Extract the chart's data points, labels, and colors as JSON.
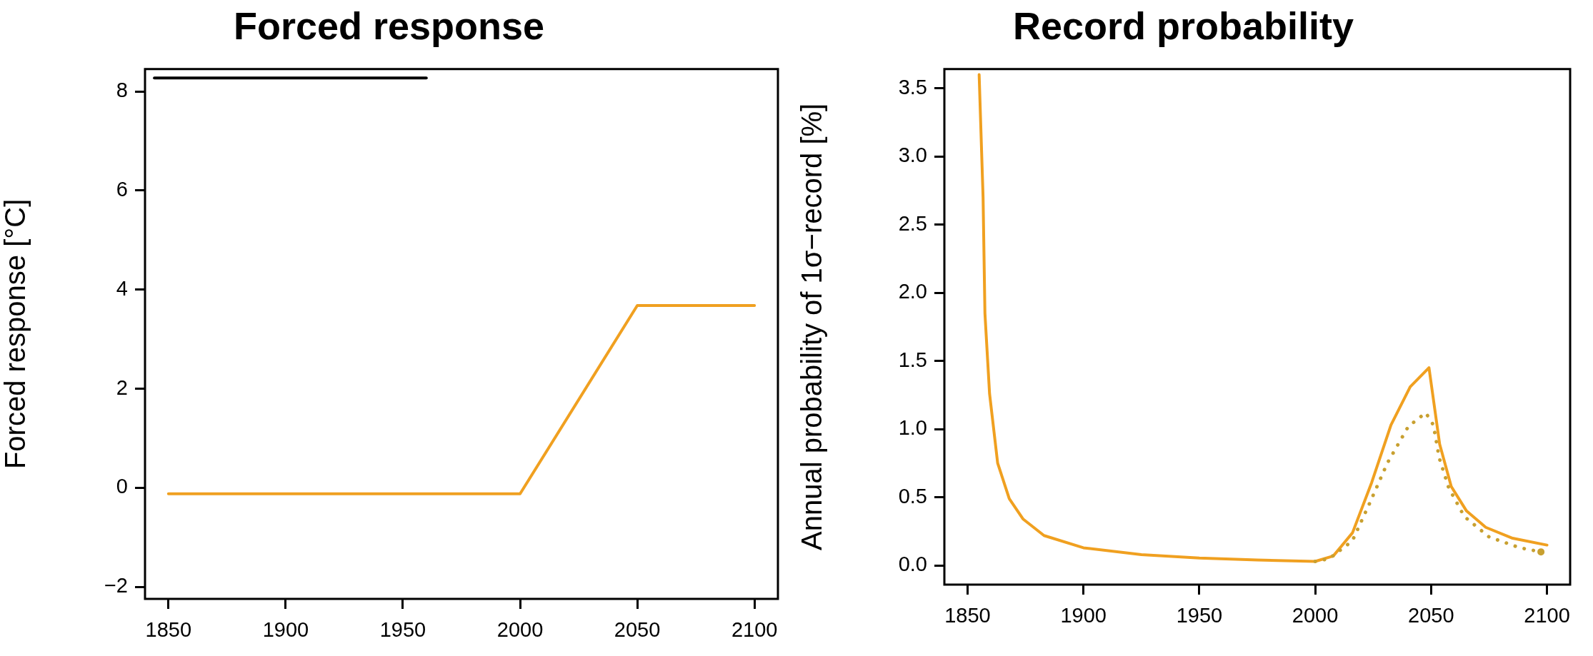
{
  "chart_data": [
    {
      "type": "line",
      "title": "Forced response",
      "ylabel": "Forced response [°C]",
      "xlim": [
        1840,
        2110
      ],
      "ylim": [
        -2.24,
        8.45
      ],
      "xticks": [
        1850,
        1900,
        1950,
        2000,
        2050,
        2100
      ],
      "yticks": [
        -2,
        0,
        2,
        4,
        6,
        8
      ],
      "grid": false,
      "legend": false,
      "series": [
        {
          "color": "#000000",
          "x": [
            1844,
            1960
          ],
          "values": [
            8.27,
            8.27
          ]
        },
        {
          "color": "#f0a020",
          "x": [
            1850,
            2000,
            2050,
            2100
          ],
          "values": [
            -0.12,
            -0.12,
            3.68,
            3.68
          ]
        }
      ]
    },
    {
      "type": "line",
      "title": "Record probability",
      "ylabel": "Annual probability of 1σ−record [%]",
      "xlim": [
        1840,
        2110
      ],
      "ylim": [
        -0.14,
        3.64
      ],
      "xticks": [
        1850,
        1900,
        1950,
        2000,
        2050,
        2100
      ],
      "yticks": [
        {
          "value": 0,
          "label": "0.0"
        },
        {
          "value": 0.5,
          "label": "0.5"
        },
        {
          "value": 1,
          "label": "1.0"
        },
        {
          "value": 1.5,
          "label": "1.5"
        },
        {
          "value": 2,
          "label": "2.0"
        },
        {
          "value": 2.5,
          "label": "2.5"
        },
        {
          "value": 3,
          "label": "3.0"
        },
        {
          "value": 3.5,
          "label": "3.5"
        }
      ],
      "grid": false,
      "legend": false,
      "series": [
        {
          "color": "#c8a030",
          "line_style": "dotted",
          "x": [
            2000,
            2006,
            2016,
            2023.3,
            2031.1,
            2040.2,
            2047.7,
            2051,
            2053.5,
            2057.6,
            2064.3,
            2075,
            2088.3,
            2097.4
          ],
          "values": [
            0.03,
            0.05,
            0.18,
            0.45,
            0.75,
            1.02,
            1.12,
            1.03,
            0.79,
            0.57,
            0.36,
            0.21,
            0.13,
            0.1
          ]
        },
        {
          "color": "#f0a020",
          "line_style": "solid",
          "x": [
            1855,
            1856.7,
            1857.5,
            1859.5,
            1863,
            1868,
            1874,
            1883,
            1900,
            1925,
            1950,
            1975,
            2000,
            2007.8,
            2016.1,
            2024.4,
            2032.7,
            2041,
            2049.1,
            2053.7,
            2058.7,
            2065.3,
            2073.6,
            2085.2,
            2100
          ],
          "values": [
            3.6,
            2.7,
            1.85,
            1.26,
            0.75,
            0.49,
            0.34,
            0.22,
            0.13,
            0.08,
            0.055,
            0.04,
            0.03,
            0.07,
            0.24,
            0.61,
            1.03,
            1.31,
            1.45,
            0.89,
            0.58,
            0.4,
            0.28,
            0.2,
            0.15
          ]
        }
      ]
    }
  ]
}
